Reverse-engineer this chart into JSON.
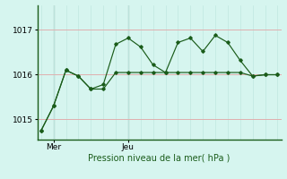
{
  "xlabel": "Pression niveau de la mer( hPa )",
  "background_color": "#d6f5ef",
  "grid_color": "#c0e8e0",
  "grid_color_v": "#e0b0b0",
  "line_color": "#1a5c1a",
  "ylim": [
    1014.55,
    1017.55
  ],
  "yticks": [
    1015,
    1016,
    1017
  ],
  "x_tick_labels": [
    "Mer",
    "Jeu"
  ],
  "x_tick_positions": [
    1,
    7
  ],
  "series1_x": [
    0,
    1,
    2,
    3,
    4,
    5,
    6,
    7,
    8,
    9,
    10,
    11,
    12,
    13,
    14,
    15,
    16,
    17,
    18,
    19
  ],
  "series1_y": [
    1014.75,
    1015.3,
    1016.1,
    1015.97,
    1015.68,
    1015.68,
    1016.05,
    1016.05,
    1016.05,
    1016.05,
    1016.05,
    1016.05,
    1016.05,
    1016.05,
    1016.05,
    1016.05,
    1016.05,
    1015.97,
    1016.0,
    1016.0
  ],
  "series2_x": [
    0,
    1,
    2,
    3,
    4,
    5,
    6,
    7,
    8,
    9,
    10,
    11,
    12,
    13,
    14,
    15,
    16,
    17,
    18,
    19
  ],
  "series2_y": [
    1014.75,
    1015.3,
    1016.1,
    1015.97,
    1015.68,
    1015.78,
    1016.68,
    1016.82,
    1016.62,
    1016.22,
    1016.05,
    1016.72,
    1016.82,
    1016.52,
    1016.88,
    1016.72,
    1016.32,
    1015.97,
    1016.0,
    1016.0
  ],
  "vline_positions": [
    1,
    7
  ],
  "vline_color": "#555555",
  "figsize": [
    3.2,
    2.0
  ],
  "dpi": 100
}
